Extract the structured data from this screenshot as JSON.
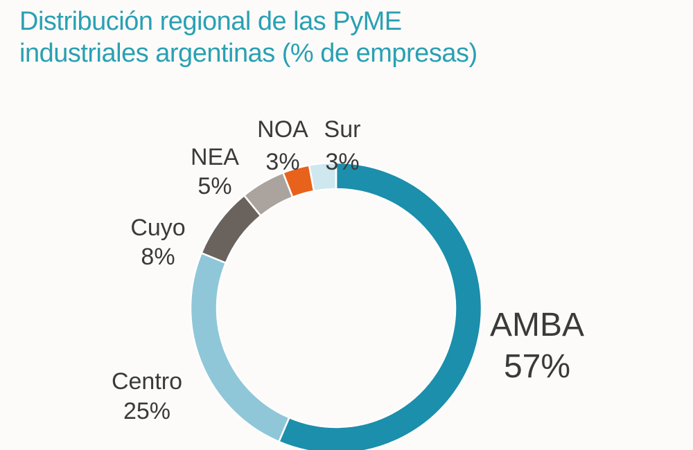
{
  "title": {
    "line1": "Distribución regional de las PyME",
    "line2": "industriales argentinas (% de empresas)"
  },
  "chart_data": {
    "type": "pie",
    "variant": "donut",
    "start_angle_deg": 0,
    "direction": "clockwise",
    "slices": [
      {
        "name": "AMBA",
        "value": 57,
        "label": "57%",
        "color": "#1b8fab"
      },
      {
        "name": "Centro",
        "value": 25,
        "label": "25%",
        "color": "#8fc7d9"
      },
      {
        "name": "Cuyo",
        "value": 8,
        "label": "8%",
        "color": "#6a625d"
      },
      {
        "name": "NEA",
        "value": 5,
        "label": "5%",
        "color": "#aba39d"
      },
      {
        "name": "NOA",
        "value": 3,
        "label": "3%",
        "color": "#e8621c"
      },
      {
        "name": "Sur",
        "value": 3,
        "label": "3%",
        "color": "#cfe7ef"
      }
    ]
  }
}
